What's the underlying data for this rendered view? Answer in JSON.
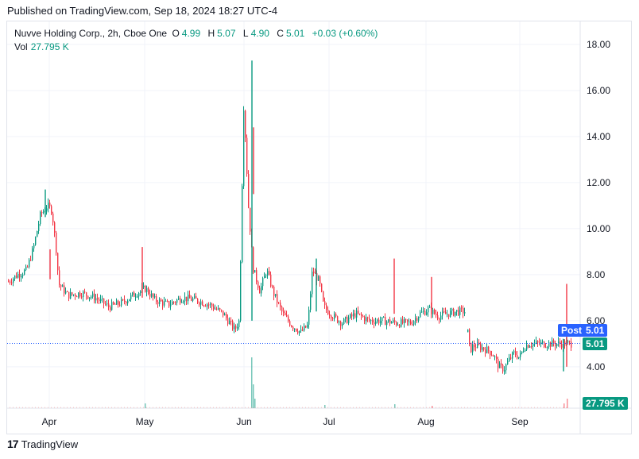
{
  "published": "Published on TradingView.com, Sep 18, 2024 18:27 UTC-4",
  "legend": {
    "symbol": "Nuvve Holding Corp., 2h, Cboe One",
    "open_label": "O",
    "open": "4.99",
    "high_label": "H",
    "high": "5.07",
    "low_label": "L",
    "low": "4.90",
    "close_label": "C",
    "close": "5.01",
    "change": "+0.03 (+0.60%)"
  },
  "volume": {
    "label": "Vol",
    "value": "27.795 K"
  },
  "tags": {
    "post_label": "Post",
    "post_value": "5.01",
    "last_value": "5.01",
    "volume_value": "27.795 K"
  },
  "footer": {
    "brand": "TradingView"
  },
  "colors": {
    "up": "#089981",
    "down": "#f23645",
    "post": "#2962ff",
    "grid": "#f0f3fa"
  },
  "chart_data": {
    "type": "candlestick",
    "y_ticks": [
      "18.00",
      "16.00",
      "14.00",
      "12.00",
      "10.00",
      "8.00",
      "6.00",
      "4.00"
    ],
    "y_tick_values": [
      18,
      16,
      14,
      12,
      10,
      8,
      6,
      4
    ],
    "x_ticks": [
      "Apr",
      "May",
      "Jun",
      "Jul",
      "Aug",
      "Sep"
    ],
    "ylim": [
      2.2,
      19.0
    ],
    "last_price": 5.01,
    "series": [
      {
        "name": "Price",
        "values": [
          {
            "t": 0.0,
            "v": 7.7
          },
          {
            "t": 0.02,
            "v": 8.0
          },
          {
            "t": 0.04,
            "v": 8.2
          },
          {
            "t": 0.055,
            "v": 9.2
          },
          {
            "t": 0.07,
            "v": 10.6
          },
          {
            "t": 0.085,
            "v": 11.0
          },
          {
            "t": 0.095,
            "v": 10.8
          },
          {
            "t": 0.105,
            "v": 9.0
          },
          {
            "t": 0.11,
            "v": 7.6
          },
          {
            "t": 0.13,
            "v": 7.1
          },
          {
            "t": 0.16,
            "v": 7.2
          },
          {
            "t": 0.19,
            "v": 7.0
          },
          {
            "t": 0.22,
            "v": 6.6
          },
          {
            "t": 0.25,
            "v": 6.8
          },
          {
            "t": 0.28,
            "v": 7.2
          },
          {
            "t": 0.3,
            "v": 7.4
          },
          {
            "t": 0.32,
            "v": 6.9
          },
          {
            "t": 0.35,
            "v": 6.7
          },
          {
            "t": 0.38,
            "v": 7.0
          },
          {
            "t": 0.41,
            "v": 6.9
          },
          {
            "t": 0.44,
            "v": 6.7
          },
          {
            "t": 0.47,
            "v": 6.3
          },
          {
            "t": 0.495,
            "v": 5.6
          },
          {
            "t": 0.505,
            "v": 6.0
          },
          {
            "t": 0.515,
            "v": 15.5
          },
          {
            "t": 0.525,
            "v": 11.0
          },
          {
            "t": 0.535,
            "v": 8.3
          },
          {
            "t": 0.55,
            "v": 7.3
          },
          {
            "t": 0.565,
            "v": 8.2
          },
          {
            "t": 0.58,
            "v": 7.2
          },
          {
            "t": 0.6,
            "v": 6.3
          },
          {
            "t": 0.62,
            "v": 5.8
          },
          {
            "t": 0.64,
            "v": 5.5
          },
          {
            "t": 0.655,
            "v": 5.8
          },
          {
            "t": 0.665,
            "v": 8.2
          },
          {
            "t": 0.68,
            "v": 7.7
          },
          {
            "t": 0.69,
            "v": 6.6
          },
          {
            "t": 0.71,
            "v": 6.2
          },
          {
            "t": 0.73,
            "v": 5.9
          },
          {
            "t": 0.76,
            "v": 6.3
          },
          {
            "t": 0.79,
            "v": 6.0
          },
          {
            "t": 0.82,
            "v": 6.0
          },
          {
            "t": 0.85,
            "v": 5.9
          },
          {
            "t": 0.88,
            "v": 5.9
          },
          {
            "t": 0.9,
            "v": 6.3
          },
          {
            "t": 0.92,
            "v": 6.5
          },
          {
            "t": 0.94,
            "v": 6.2
          },
          {
            "t": 0.96,
            "v": 6.3
          },
          {
            "t": 0.98,
            "v": 6.4
          }
        ]
      }
    ],
    "series2": [
      {
        "t": 0.0,
        "v": 5.5
      },
      {
        "t": 0.02,
        "v": 4.7
      },
      {
        "t": 0.05,
        "v": 4.9
      },
      {
        "t": 0.1,
        "v": 4.9
      },
      {
        "t": 0.15,
        "v": 4.8
      },
      {
        "t": 0.2,
        "v": 4.7
      },
      {
        "t": 0.25,
        "v": 4.5
      },
      {
        "t": 0.3,
        "v": 4.0
      },
      {
        "t": 0.35,
        "v": 3.9
      },
      {
        "t": 0.4,
        "v": 4.3
      },
      {
        "t": 0.45,
        "v": 4.6
      },
      {
        "t": 0.5,
        "v": 4.4
      },
      {
        "t": 0.55,
        "v": 4.9
      },
      {
        "t": 0.6,
        "v": 5.0
      }
    ]
  }
}
